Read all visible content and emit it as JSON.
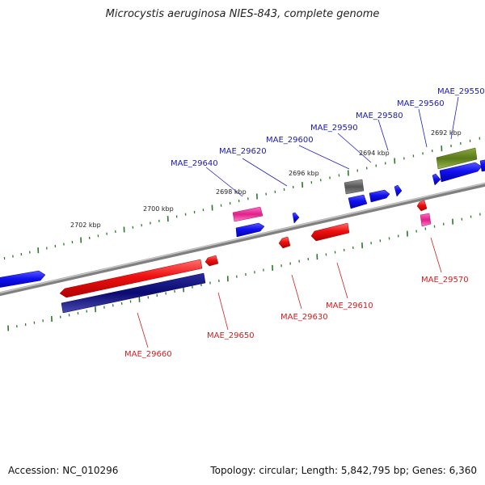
{
  "title": "Microcystis aeruginosa NIES-843, complete genome",
  "footer": {
    "accession": "Accession: NC_010296",
    "topology": "Topology: circular; Length: 5,842,795 bp; Genes: 6,360"
  },
  "colors": {
    "backbone": "#8c8c8c",
    "forward_label": "#1a1aaa",
    "reverse_label": "#cc2222",
    "tick": "#2a7a2a"
  },
  "ticks": [
    {
      "label": "2702 kbp"
    },
    {
      "label": "2700 kbp"
    },
    {
      "label": "2698 kbp"
    },
    {
      "label": "2696 kbp"
    },
    {
      "label": "2694 kbp"
    },
    {
      "label": "2692 kbp"
    }
  ],
  "genes_forward": [
    {
      "label": "MAE_29640"
    },
    {
      "label": "MAE_29620"
    },
    {
      "label": "MAE_29600"
    },
    {
      "label": "MAE_29590"
    },
    {
      "label": "MAE_29580"
    },
    {
      "label": "MAE_29560"
    },
    {
      "label": "MAE_29550"
    }
  ],
  "genes_reverse": [
    {
      "label": "MAE_29660"
    },
    {
      "label": "MAE_29650"
    },
    {
      "label": "MAE_29630"
    },
    {
      "label": "MAE_29610"
    },
    {
      "label": "MAE_29570"
    }
  ]
}
